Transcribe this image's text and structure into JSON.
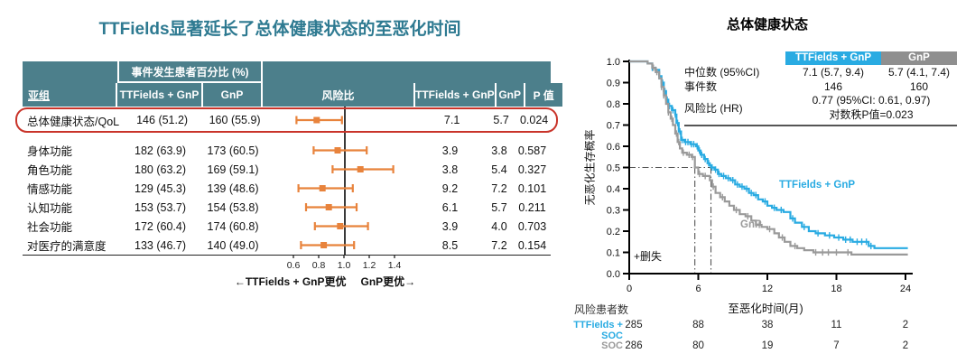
{
  "colors": {
    "accent_cyan": "#29ABE2",
    "series_gray": "#9A9A9A",
    "forest_orange": "#E8833C",
    "header_teal": "#4C7F8B",
    "title_teal": "#2E7A91",
    "highlight_red": "#C9342A"
  },
  "left_panel": {
    "title": "TTFields显著延长了总体健康状态的至恶化时间",
    "table": {
      "header": {
        "subgroup": "亚组",
        "pct_span": "事件发生患者百分比 (%)",
        "events_ttf": "TTFields + GnP",
        "events_gnp": "GnP",
        "hr": "风险比",
        "median_ttf": "TTFields + GnP",
        "median_gnp": "GnP",
        "p": "P 值"
      }
    }
  },
  "right_panel": {
    "censor_note": "+删失",
    "inset": {
      "col1": "TTFields + GnP",
      "col2": "GnP",
      "median_label": "中位数 (95%CI)",
      "median1": "7.1 (5.7, 9.4)",
      "median2": "5.7 (4.1, 7.4)",
      "events_label": "事件数",
      "events1": "146",
      "events2": "160",
      "hr_label": "风险比 (HR)",
      "hr_value": "0.77 (95%CI: 0.61, 0.97)",
      "logrank": "对数秩P值=0.023"
    }
  },
  "chart_data": [
    {
      "type": "forest",
      "title": "TTFields显著延长了总体健康状态的至恶化时间",
      "x_ticks": [
        0.6,
        0.8,
        1.0,
        1.2,
        1.4
      ],
      "ref_line": 1.0,
      "xlim": [
        0.5,
        1.55
      ],
      "footer_left": "←TTFields + GnP更优",
      "footer_right": "GnP更优→",
      "rows": [
        {
          "subgroup": "总体健康状态/QoL",
          "events_ttf": "146 (51.2)",
          "events_gnp": "160 (55.9)",
          "hr": 0.77,
          "ci_low": 0.61,
          "ci_high": 0.97,
          "median_ttf": "7.1",
          "median_gnp": "5.7",
          "p": "0.024",
          "highlight": true
        },
        {
          "subgroup": "身体功能",
          "events_ttf": "182 (63.9)",
          "events_gnp": "173 (60.5)",
          "hr": 0.95,
          "ci_low": 0.76,
          "ci_high": 1.18,
          "median_ttf": "3.9",
          "median_gnp": "3.8",
          "p": "0.587",
          "highlight": false
        },
        {
          "subgroup": "角色功能",
          "events_ttf": "180 (63.2)",
          "events_gnp": "169 (59.1)",
          "hr": 1.13,
          "ci_low": 0.91,
          "ci_high": 1.39,
          "median_ttf": "3.8",
          "median_gnp": "5.4",
          "p": "0.327",
          "highlight": false
        },
        {
          "subgroup": "情感功能",
          "events_ttf": "129 (45.3)",
          "events_gnp": "139 (48.6)",
          "hr": 0.83,
          "ci_low": 0.64,
          "ci_high": 1.07,
          "median_ttf": "9.2",
          "median_gnp": "7.2",
          "p": "0.101",
          "highlight": false
        },
        {
          "subgroup": "认知功能",
          "events_ttf": "153 (53.7)",
          "events_gnp": "154 (53.8)",
          "hr": 0.88,
          "ci_low": 0.7,
          "ci_high": 1.1,
          "median_ttf": "6.1",
          "median_gnp": "5.7",
          "p": "0.211",
          "highlight": false
        },
        {
          "subgroup": "社会功能",
          "events_ttf": "172 (60.4)",
          "events_gnp": "174 (60.8)",
          "hr": 0.97,
          "ci_low": 0.77,
          "ci_high": 1.19,
          "median_ttf": "3.9",
          "median_gnp": "4.0",
          "p": "0.703",
          "highlight": false
        },
        {
          "subgroup": "对医疗的满意度",
          "events_ttf": "133 (46.7)",
          "events_gnp": "140 (49.0)",
          "hr": 0.84,
          "ci_low": 0.66,
          "ci_high": 1.08,
          "median_ttf": "8.5",
          "median_gnp": "7.2",
          "p": "0.154",
          "highlight": false
        }
      ]
    },
    {
      "type": "line",
      "title": "总体健康状态",
      "xlabel": "至恶化时间(月)",
      "ylabel": "无恶化生存概率",
      "xlim": [
        0,
        24.5
      ],
      "ylim": [
        0.0,
        1.0
      ],
      "xticks": [
        0,
        6,
        12,
        18,
        24
      ],
      "yticks": [
        0.0,
        0.1,
        0.2,
        0.3,
        0.4,
        0.5,
        0.6,
        0.7,
        0.8,
        0.9,
        1.0
      ],
      "median_lines": {
        "y": 0.5,
        "x_values": [
          5.7,
          7.1
        ]
      },
      "series": [
        {
          "name": "TTFields + GnP",
          "color": "#29ABE2",
          "points": [
            [
              0,
              1.0
            ],
            [
              1.3,
              1.0
            ],
            [
              1.6,
              0.99
            ],
            [
              2.0,
              0.97
            ],
            [
              2.3,
              0.96
            ],
            [
              2.6,
              0.93
            ],
            [
              2.8,
              0.9
            ],
            [
              3.0,
              0.86
            ],
            [
              3.2,
              0.82
            ],
            [
              3.4,
              0.79
            ],
            [
              3.7,
              0.77
            ],
            [
              4.0,
              0.75
            ],
            [
              4.1,
              0.71
            ],
            [
              4.3,
              0.67
            ],
            [
              4.5,
              0.63
            ],
            [
              4.8,
              0.62
            ],
            [
              5.3,
              0.61
            ],
            [
              5.8,
              0.6
            ],
            [
              6.0,
              0.58
            ],
            [
              6.2,
              0.56
            ],
            [
              6.5,
              0.54
            ],
            [
              6.8,
              0.52
            ],
            [
              7.0,
              0.51
            ],
            [
              7.1,
              0.5
            ],
            [
              7.4,
              0.49
            ],
            [
              7.7,
              0.47
            ],
            [
              8.0,
              0.46
            ],
            [
              8.4,
              0.45
            ],
            [
              8.8,
              0.44
            ],
            [
              9.2,
              0.42
            ],
            [
              9.6,
              0.41
            ],
            [
              10.0,
              0.4
            ],
            [
              10.4,
              0.38
            ],
            [
              10.8,
              0.37
            ],
            [
              11.2,
              0.35
            ],
            [
              11.6,
              0.34
            ],
            [
              12.0,
              0.32
            ],
            [
              12.4,
              0.31
            ],
            [
              12.8,
              0.3
            ],
            [
              13.4,
              0.29
            ],
            [
              14.0,
              0.26
            ],
            [
              14.4,
              0.24
            ],
            [
              15.0,
              0.22
            ],
            [
              15.6,
              0.2
            ],
            [
              16.2,
              0.19
            ],
            [
              17.0,
              0.18
            ],
            [
              17.8,
              0.17
            ],
            [
              18.6,
              0.16
            ],
            [
              19.4,
              0.15
            ],
            [
              20.8,
              0.13
            ],
            [
              21.3,
              0.12
            ],
            [
              24.2,
              0.12
            ]
          ],
          "censor_times": [
            2.0,
            2.3,
            2.6,
            2.9,
            3.1,
            3.3,
            3.5,
            3.8,
            4.0,
            4.2,
            4.4,
            4.6,
            4.9,
            5.1,
            5.4,
            5.6,
            5.9,
            6.1,
            6.3,
            6.6,
            6.9,
            7.2,
            7.5,
            7.8,
            8.2,
            8.6,
            9.0,
            9.4,
            9.8,
            10.2,
            10.6,
            11.0,
            11.8,
            12.6,
            13.2,
            14.2,
            15.2,
            16.4,
            17.4,
            18.2,
            18.8,
            19.2,
            19.8,
            20.2,
            20.6,
            21.0
          ]
        },
        {
          "name": "GnP",
          "color": "#9A9A9A",
          "points": [
            [
              0,
              1.0
            ],
            [
              1.3,
              1.0
            ],
            [
              1.6,
              0.99
            ],
            [
              2.0,
              0.97
            ],
            [
              2.3,
              0.95
            ],
            [
              2.6,
              0.92
            ],
            [
              2.8,
              0.88
            ],
            [
              3.0,
              0.84
            ],
            [
              3.2,
              0.8
            ],
            [
              3.4,
              0.76
            ],
            [
              3.6,
              0.73
            ],
            [
              3.8,
              0.7
            ],
            [
              4.0,
              0.66
            ],
            [
              4.2,
              0.62
            ],
            [
              4.4,
              0.59
            ],
            [
              4.6,
              0.57
            ],
            [
              5.0,
              0.56
            ],
            [
              5.4,
              0.55
            ],
            [
              5.7,
              0.5
            ],
            [
              6.0,
              0.47
            ],
            [
              6.4,
              0.46
            ],
            [
              7.0,
              0.44
            ],
            [
              7.2,
              0.41
            ],
            [
              7.5,
              0.38
            ],
            [
              7.9,
              0.36
            ],
            [
              8.3,
              0.34
            ],
            [
              8.7,
              0.32
            ],
            [
              9.1,
              0.3
            ],
            [
              9.6,
              0.28
            ],
            [
              10.1,
              0.27
            ],
            [
              10.6,
              0.25
            ],
            [
              11.0,
              0.23
            ],
            [
              11.5,
              0.22
            ],
            [
              12.0,
              0.21
            ],
            [
              12.6,
              0.19
            ],
            [
              13.0,
              0.17
            ],
            [
              13.5,
              0.15
            ],
            [
              14.0,
              0.13
            ],
            [
              14.6,
              0.12
            ],
            [
              15.2,
              0.11
            ],
            [
              16.0,
              0.1
            ],
            [
              18.5,
              0.1
            ],
            [
              19.3,
              0.09
            ],
            [
              24.2,
              0.09
            ]
          ],
          "censor_times": [
            2.1,
            2.4,
            2.8,
            3.0,
            3.4,
            3.7,
            4.1,
            4.3,
            4.7,
            5.2,
            5.5,
            6.1,
            6.6,
            7.3,
            8.1,
            9.3,
            10.3,
            11.3,
            12.2,
            13.3,
            14.4,
            16.2,
            16.8,
            17.3,
            18.0,
            19.0
          ]
        }
      ],
      "risk_table": {
        "title": "风险患者数",
        "times": [
          0,
          6,
          12,
          18,
          24
        ],
        "rows": [
          {
            "label": "TTFields + SOC",
            "counts": [
              285,
              88,
              38,
              11,
              2
            ]
          },
          {
            "label": "SOC",
            "counts": [
              286,
              80,
              19,
              7,
              2
            ]
          }
        ]
      }
    }
  ]
}
